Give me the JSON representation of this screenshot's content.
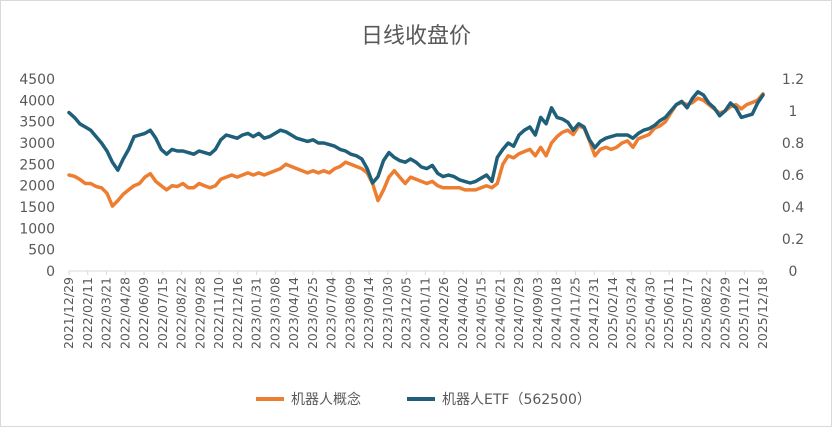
{
  "chart_data": {
    "type": "line",
    "title": "日线收盘价",
    "y_left_ticks": [
      "0",
      "500",
      "1000",
      "1500",
      "2000",
      "2500",
      "3000",
      "3500",
      "4000",
      "4500"
    ],
    "y_right_ticks": [
      "0",
      "0.2",
      "0.4",
      "0.6",
      "0.8",
      "1",
      "1.2"
    ],
    "ylim_left": [
      0,
      4500
    ],
    "ylim_right": [
      0,
      1.2
    ],
    "x_ticks": [
      "2021/12/29",
      "2022/02/11",
      "2022/03/21",
      "2022/04/28",
      "2022/06/09",
      "2022/07/15",
      "2022/08/22",
      "2022/09/28",
      "2022/11/10",
      "2022/12/16",
      "2023/01/31",
      "2023/03/08",
      "2023/04/14",
      "2023/05/25",
      "2023/07/04",
      "2023/08/09",
      "2023/09/14",
      "2023/10/30",
      "2023/12/05",
      "2024/01/11",
      "2024/02/26",
      "2024/04/02",
      "2024/05/15",
      "2024/06/21",
      "2024/07/29",
      "2024/09/03",
      "2024/10/18",
      "2024/11/25",
      "2024/12/31",
      "2025/02/14",
      "2025/03/24",
      "2025/04/30",
      "2025/06/11",
      "2025/07/17",
      "2025/08/22",
      "2025/09/29",
      "2025/11/12",
      "2025/12/18"
    ],
    "series": [
      {
        "name": "机器人概念",
        "axis": "left",
        "color": "#ED7D31",
        "values": [
          2250,
          2220,
          2150,
          2050,
          2050,
          1980,
          1950,
          1820,
          1520,
          1650,
          1800,
          1900,
          2000,
          2050,
          2200,
          2280,
          2100,
          2000,
          1900,
          2000,
          1980,
          2050,
          1950,
          1950,
          2050,
          2000,
          1950,
          2000,
          2150,
          2200,
          2250,
          2200,
          2250,
          2300,
          2250,
          2300,
          2250,
          2300,
          2350,
          2400,
          2500,
          2450,
          2400,
          2350,
          2300,
          2350,
          2300,
          2350,
          2300,
          2400,
          2450,
          2550,
          2500,
          2450,
          2400,
          2300,
          2050,
          1650,
          1900,
          2200,
          2350,
          2200,
          2050,
          2200,
          2150,
          2100,
          2050,
          2100,
          2000,
          1950,
          1950,
          1950,
          1950,
          1900,
          1900,
          1900,
          1950,
          2000,
          1950,
          2050,
          2500,
          2700,
          2650,
          2750,
          2800,
          2850,
          2700,
          2900,
          2700,
          3000,
          3150,
          3250,
          3300,
          3200,
          3400,
          3350,
          3050,
          2700,
          2850,
          2900,
          2850,
          2900,
          3000,
          3050,
          2900,
          3100,
          3150,
          3200,
          3350,
          3400,
          3500,
          3700,
          3900,
          3950,
          3900,
          3950,
          4050,
          4000,
          3900,
          3800,
          3700,
          3750,
          3850,
          3900,
          3800,
          3900,
          3950,
          4000,
          4150
        ]
      },
      {
        "name": "机器人ETF（562500）",
        "axis": "right",
        "color": "#1F5F7A",
        "values": [
          0.99,
          0.96,
          0.92,
          0.9,
          0.88,
          0.84,
          0.8,
          0.75,
          0.68,
          0.63,
          0.7,
          0.76,
          0.84,
          0.85,
          0.86,
          0.88,
          0.83,
          0.76,
          0.73,
          0.76,
          0.75,
          0.75,
          0.74,
          0.73,
          0.75,
          0.74,
          0.73,
          0.76,
          0.82,
          0.85,
          0.84,
          0.83,
          0.85,
          0.86,
          0.84,
          0.86,
          0.83,
          0.84,
          0.86,
          0.88,
          0.87,
          0.85,
          0.83,
          0.82,
          0.81,
          0.82,
          0.8,
          0.8,
          0.79,
          0.78,
          0.76,
          0.75,
          0.73,
          0.72,
          0.7,
          0.64,
          0.55,
          0.59,
          0.69,
          0.74,
          0.71,
          0.69,
          0.68,
          0.7,
          0.68,
          0.65,
          0.64,
          0.66,
          0.61,
          0.59,
          0.6,
          0.59,
          0.57,
          0.56,
          0.55,
          0.56,
          0.58,
          0.6,
          0.56,
          0.71,
          0.76,
          0.8,
          0.78,
          0.85,
          0.88,
          0.9,
          0.85,
          0.96,
          0.92,
          1.02,
          0.96,
          0.95,
          0.93,
          0.88,
          0.92,
          0.9,
          0.82,
          0.77,
          0.81,
          0.83,
          0.84,
          0.85,
          0.85,
          0.85,
          0.83,
          0.86,
          0.88,
          0.89,
          0.91,
          0.94,
          0.96,
          1.0,
          1.04,
          1.06,
          1.02,
          1.08,
          1.12,
          1.1,
          1.05,
          1.02,
          0.97,
          1.0,
          1.05,
          1.02,
          0.96,
          0.97,
          0.98,
          1.05,
          1.1
        ]
      }
    ],
    "legend": {
      "placement": "bottom"
    },
    "grid": false
  }
}
